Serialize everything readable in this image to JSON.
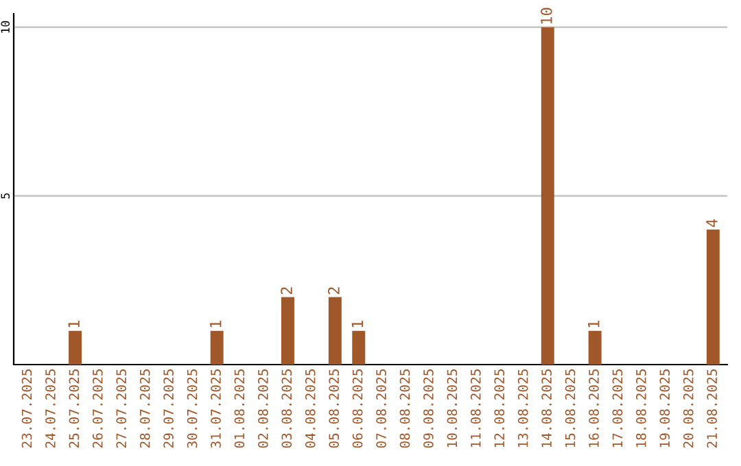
{
  "chart_data": {
    "type": "bar",
    "categories": [
      "23.07.2025",
      "24.07.2025",
      "25.07.2025",
      "26.07.2025",
      "27.07.2025",
      "28.07.2025",
      "29.07.2025",
      "30.07.2025",
      "31.07.2025",
      "01.08.2025",
      "02.08.2025",
      "03.08.2025",
      "04.08.2025",
      "05.08.2025",
      "06.08.2025",
      "07.08.2025",
      "08.08.2025",
      "09.08.2025",
      "10.08.2025",
      "11.08.2025",
      "12.08.2025",
      "13.08.2025",
      "14.08.2025",
      "15.08.2025",
      "16.08.2025",
      "17.08.2025",
      "18.08.2025",
      "19.08.2025",
      "20.08.2025",
      "21.08.2025"
    ],
    "values": [
      0,
      0,
      1,
      0,
      0,
      0,
      0,
      0,
      1,
      0,
      0,
      2,
      0,
      2,
      1,
      0,
      0,
      0,
      0,
      0,
      0,
      0,
      10,
      0,
      1,
      0,
      0,
      0,
      0,
      4
    ],
    "value_labels": [
      null,
      null,
      "1",
      null,
      null,
      null,
      null,
      null,
      "1",
      null,
      null,
      "2",
      null,
      "2",
      "1",
      null,
      null,
      null,
      null,
      null,
      null,
      null,
      "10",
      null,
      "1",
      null,
      null,
      null,
      null,
      "4"
    ],
    "color": "#a0572a",
    "ylim": [
      0,
      10.4
    ],
    "yticks": [
      5,
      10
    ],
    "grid": "y"
  }
}
